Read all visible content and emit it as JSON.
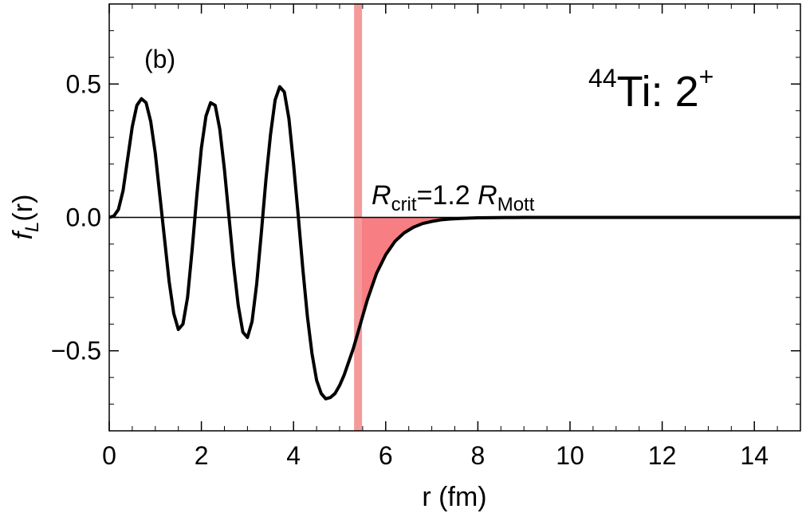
{
  "chart_data": {
    "type": "line",
    "panel_label": "(b)",
    "title": {
      "mass_number": "44",
      "element": "Ti: 2",
      "parity": "+"
    },
    "xlabel": "r (fm)",
    "ylabel": {
      "main": "f",
      "sub": "L",
      "rest": "(r)"
    },
    "xlim": [
      0,
      15
    ],
    "ylim": [
      -0.8,
      0.8
    ],
    "x_ticks": [
      0,
      2,
      4,
      6,
      8,
      10,
      12,
      14
    ],
    "x_tick_labels": [
      "0",
      "2",
      "4",
      "6",
      "8",
      "10",
      "12",
      "14"
    ],
    "y_ticks": [
      -0.5,
      0.0,
      0.5
    ],
    "y_tick_labels": [
      "−0.5",
      "0.0",
      "0.5"
    ],
    "grid": false,
    "series": [
      {
        "line_color": "#000000",
        "x": [
          0.0,
          0.1,
          0.2,
          0.3,
          0.4,
          0.5,
          0.6,
          0.7,
          0.8,
          0.9,
          1.0,
          1.1,
          1.2,
          1.3,
          1.4,
          1.5,
          1.6,
          1.7,
          1.8,
          1.9,
          2.0,
          2.1,
          2.2,
          2.3,
          2.4,
          2.5,
          2.6,
          2.7,
          2.8,
          2.9,
          3.0,
          3.1,
          3.2,
          3.3,
          3.4,
          3.5,
          3.6,
          3.7,
          3.8,
          3.9,
          4.0,
          4.1,
          4.2,
          4.3,
          4.4,
          4.5,
          4.6,
          4.7,
          4.8,
          4.9,
          5.0,
          5.1,
          5.2,
          5.3,
          5.4,
          5.5,
          5.6,
          5.8,
          6.0,
          6.2,
          6.4,
          6.6,
          6.8,
          7.0,
          7.2,
          7.4,
          7.6,
          7.8,
          8.0,
          8.2,
          8.4,
          8.6,
          8.8,
          9.0,
          9.3,
          9.6,
          10.0,
          10.5,
          11.0,
          12.0,
          13.0,
          14.0,
          15.0
        ],
        "y": [
          0.0,
          0.005,
          0.03,
          0.1,
          0.22,
          0.34,
          0.42,
          0.445,
          0.43,
          0.36,
          0.24,
          0.08,
          -0.08,
          -0.24,
          -0.36,
          -0.42,
          -0.4,
          -0.3,
          -0.12,
          0.08,
          0.26,
          0.38,
          0.43,
          0.42,
          0.33,
          0.18,
          0.0,
          -0.18,
          -0.33,
          -0.43,
          -0.45,
          -0.39,
          -0.25,
          -0.06,
          0.14,
          0.31,
          0.44,
          0.49,
          0.47,
          0.37,
          0.2,
          0.01,
          -0.19,
          -0.37,
          -0.51,
          -0.61,
          -0.66,
          -0.68,
          -0.675,
          -0.66,
          -0.63,
          -0.59,
          -0.54,
          -0.49,
          -0.43,
          -0.37,
          -0.31,
          -0.21,
          -0.14,
          -0.09,
          -0.058,
          -0.037,
          -0.023,
          -0.015,
          -0.009,
          -0.006,
          -0.004,
          -0.0025,
          -0.0015,
          -0.001,
          -0.0006,
          -0.0004,
          -0.0002,
          -0.0001,
          -5e-05,
          -2e-05,
          0.0,
          0.0,
          0.0,
          0.0,
          0.0,
          0.0,
          0.0
        ]
      }
    ],
    "vertical_marker": {
      "x": 5.4,
      "color": "#F59A9A"
    },
    "shaded_region": {
      "from_x": 5.4,
      "to_x": 15,
      "color": "#F77E82",
      "description_label": ""
    },
    "annotation": {
      "prefix": "R",
      "prefix_sub": "crit",
      "middle": "=1.2 ",
      "suffix": "R",
      "suffix_sub": "Mott"
    }
  }
}
